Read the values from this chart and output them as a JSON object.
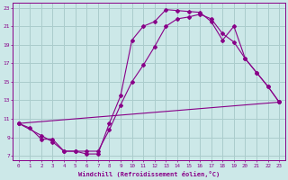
{
  "xlabel": "Windchill (Refroidissement éolien,°C)",
  "background_color": "#cce8e8",
  "grid_color": "#aacccc",
  "line_color": "#880088",
  "xlim": [
    -0.5,
    23.5
  ],
  "ylim": [
    6.5,
    23.5
  ],
  "xticks": [
    0,
    1,
    2,
    3,
    4,
    5,
    6,
    7,
    8,
    9,
    10,
    11,
    12,
    13,
    14,
    15,
    16,
    17,
    18,
    19,
    20,
    21,
    22,
    23
  ],
  "yticks": [
    7,
    9,
    11,
    13,
    15,
    17,
    19,
    21,
    23
  ],
  "line1_x": [
    0,
    1,
    2,
    3,
    4,
    5,
    6,
    7,
    8,
    9,
    10,
    11,
    12,
    13,
    14,
    15,
    16,
    17,
    18,
    19,
    20,
    21,
    22,
    23
  ],
  "line1_y": [
    10.5,
    10.0,
    8.8,
    8.8,
    7.5,
    7.5,
    7.2,
    7.2,
    10.5,
    13.5,
    19.5,
    21.0,
    21.5,
    22.8,
    22.7,
    22.6,
    22.5,
    21.5,
    19.5,
    21.0,
    17.5,
    16.0,
    14.5,
    12.8
  ],
  "line2_x": [
    0,
    2,
    3,
    4,
    5,
    6,
    7,
    8,
    9,
    10,
    11,
    12,
    13,
    14,
    15,
    16,
    17,
    18,
    19,
    20,
    21,
    22,
    23
  ],
  "line2_y": [
    10.5,
    9.2,
    8.5,
    7.5,
    7.5,
    7.5,
    7.5,
    9.8,
    12.5,
    15.0,
    16.8,
    18.8,
    21.0,
    21.8,
    22.0,
    22.3,
    21.8,
    20.2,
    19.3,
    17.5,
    16.0,
    14.5,
    12.8
  ],
  "line3_x": [
    0,
    23
  ],
  "line3_y": [
    10.5,
    12.8
  ]
}
